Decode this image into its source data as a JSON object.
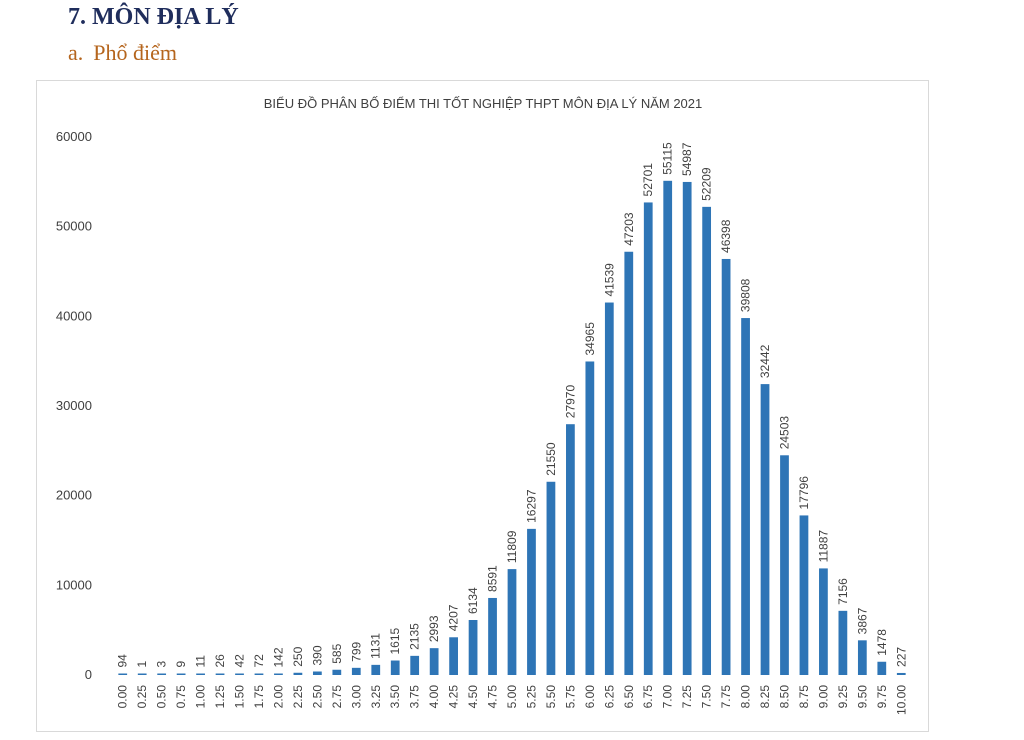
{
  "document": {
    "section_number": "7.",
    "section_title": "MÔN ĐỊA LÝ",
    "subsection_letter": "a.",
    "subsection_title": "Phổ điểm"
  },
  "colors": {
    "bar": "#2e75b6",
    "heading": "#1f2d5c",
    "subheading": "#b5651d"
  },
  "chart_data": {
    "type": "bar",
    "title": "BIỂU ĐỒ PHÂN BỐ ĐIỂM THI TỐT NGHIỆP THPT MÔN ĐỊA LÝ NĂM 2021",
    "xlabel": "",
    "ylabel": "",
    "ylim": [
      0,
      60000
    ],
    "yticks": [
      0,
      10000,
      20000,
      30000,
      40000,
      50000,
      60000
    ],
    "grid": false,
    "legend": "none",
    "categories": [
      "0.00",
      "0.25",
      "0.50",
      "0.75",
      "1.00",
      "1.25",
      "1.50",
      "1.75",
      "2.00",
      "2.25",
      "2.50",
      "2.75",
      "3.00",
      "3.25",
      "3.50",
      "3.75",
      "4.00",
      "4.25",
      "4.50",
      "4.75",
      "5.00",
      "5.25",
      "5.50",
      "5.75",
      "6.00",
      "6.25",
      "6.50",
      "6.75",
      "7.00",
      "7.25",
      "7.50",
      "7.75",
      "8.00",
      "8.25",
      "8.50",
      "8.75",
      "9.00",
      "9.25",
      "9.50",
      "9.75",
      "10.00"
    ],
    "values": [
      94,
      1,
      3,
      9,
      11,
      26,
      42,
      72,
      142,
      250,
      390,
      585,
      799,
      1131,
      1615,
      2135,
      2993,
      4207,
      6134,
      8591,
      11809,
      16297,
      21550,
      27970,
      34965,
      41539,
      47203,
      52701,
      55115,
      54987,
      52209,
      46398,
      39808,
      32442,
      24503,
      17796,
      11887,
      7156,
      3867,
      1478,
      227
    ]
  }
}
